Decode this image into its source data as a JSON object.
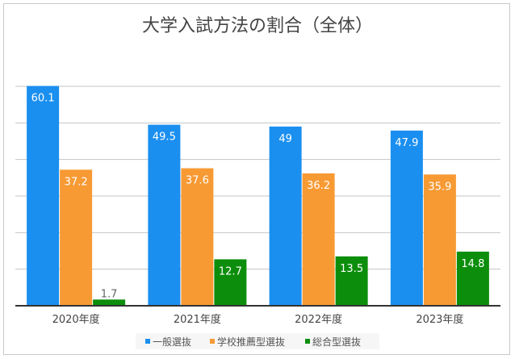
{
  "chart_data": {
    "type": "bar",
    "title": "大学入試方法の割合（全体）",
    "categories": [
      "2020年度",
      "2021年度",
      "2022年度",
      "2023年度"
    ],
    "series": [
      {
        "name": "一般選抜",
        "color": "#1a8ff0",
        "values": [
          60.1,
          49.5,
          49,
          47.9
        ]
      },
      {
        "name": "学校推薦型選抜",
        "color": "#f79a34",
        "values": [
          37.2,
          37.6,
          36.2,
          35.9
        ]
      },
      {
        "name": "総合型選抜",
        "color": "#0c8e0c",
        "values": [
          1.7,
          12.7,
          13.5,
          14.8
        ]
      }
    ],
    "xlabel": "",
    "ylabel": "",
    "ylim": [
      0,
      60
    ],
    "grid": true,
    "legend": "bottom"
  }
}
